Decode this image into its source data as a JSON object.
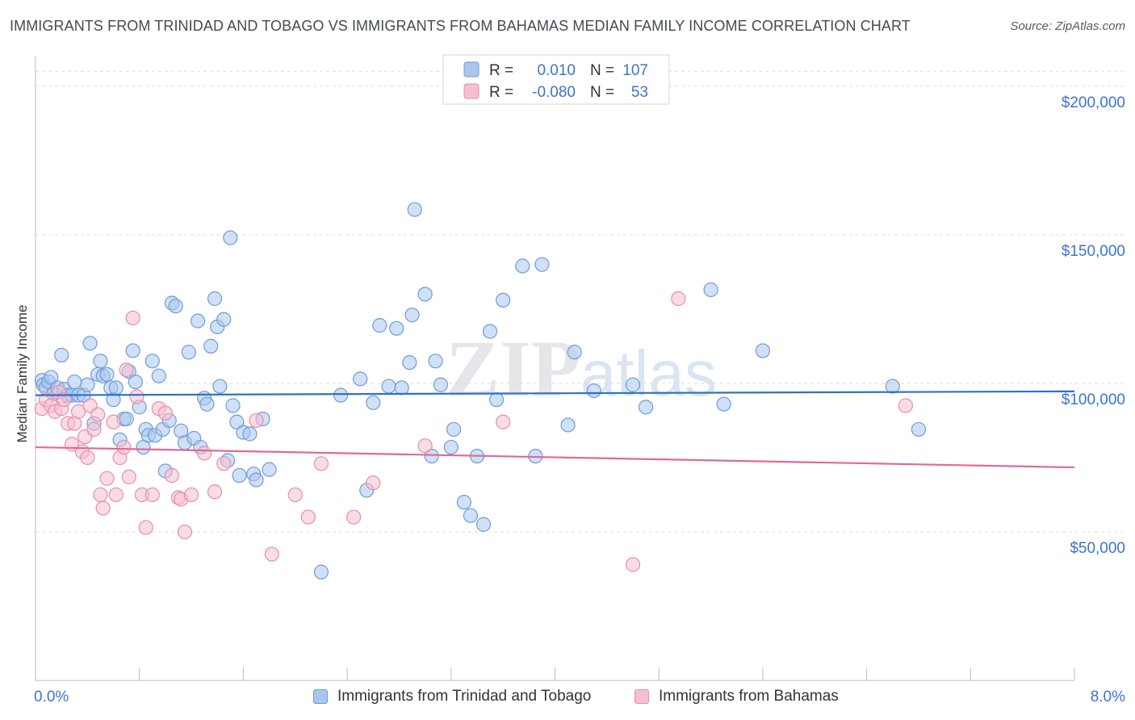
{
  "header": {
    "title": "IMMIGRANTS FROM TRINIDAD AND TOBAGO VS IMMIGRANTS FROM BAHAMAS MEDIAN FAMILY INCOME CORRELATION CHART",
    "source": "Source: ZipAtlas.com"
  },
  "watermark": "ZIPatlas",
  "colors": {
    "blue_fill": "#a9c6ee",
    "blue_stroke": "#6f9bd9",
    "blue_line": "#2f6fcb",
    "pink_fill": "#f6bfd0",
    "pink_stroke": "#e88dab",
    "pink_line": "#e0689a",
    "tick_label": "#3b74d1",
    "grid": "#dddddd"
  },
  "chart_data": {
    "type": "scatter",
    "title": "IMMIGRANTS FROM TRINIDAD AND TOBAGO VS IMMIGRANTS FROM BAHAMAS MEDIAN FAMILY INCOME CORRELATION CHART",
    "xlabel": "",
    "ylabel": "Median Family Income",
    "xlim": [
      0,
      8
    ],
    "ylim": [
      0,
      210000
    ],
    "x_tick_labels": [
      "0.0%",
      "8.0%"
    ],
    "y_ticks": [
      50000,
      100000,
      150000,
      200000
    ],
    "y_tick_labels": [
      "$50,000",
      "$100,000",
      "$150,000",
      "$200,000"
    ],
    "grid": "horizontal dashed",
    "legend_top": [
      {
        "r_label": "R =",
        "r_value": "0.010",
        "n_label": "N =",
        "n_value": "107"
      },
      {
        "r_label": "R =",
        "r_value": "-0.080",
        "n_label": "N =",
        "n_value": "53"
      }
    ],
    "series": [
      {
        "name": "Immigrants from Trinidad and Tobago",
        "trend": {
          "x": [
            0,
            8
          ],
          "y": [
            96000,
            97300
          ]
        },
        "points": [
          [
            0.05,
            101000
          ],
          [
            0.06,
            99500
          ],
          [
            0.08,
            98500
          ],
          [
            0.1,
            100500
          ],
          [
            0.12,
            102000
          ],
          [
            0.14,
            96500
          ],
          [
            0.17,
            98500
          ],
          [
            0.2,
            109500
          ],
          [
            0.22,
            98000
          ],
          [
            0.25,
            96000
          ],
          [
            0.28,
            96000
          ],
          [
            0.3,
            100500
          ],
          [
            0.33,
            96000
          ],
          [
            0.37,
            96000
          ],
          [
            0.4,
            99500
          ],
          [
            0.42,
            113500
          ],
          [
            0.45,
            86500
          ],
          [
            0.48,
            103000
          ],
          [
            0.5,
            107500
          ],
          [
            0.52,
            102500
          ],
          [
            0.55,
            103000
          ],
          [
            0.58,
            98500
          ],
          [
            0.6,
            94500
          ],
          [
            0.62,
            98500
          ],
          [
            0.65,
            81000
          ],
          [
            0.68,
            88000
          ],
          [
            0.7,
            88000
          ],
          [
            0.72,
            104000
          ],
          [
            0.75,
            111000
          ],
          [
            0.77,
            100500
          ],
          [
            0.8,
            92000
          ],
          [
            0.83,
            78500
          ],
          [
            0.85,
            84500
          ],
          [
            0.87,
            82500
          ],
          [
            0.9,
            107500
          ],
          [
            0.92,
            82500
          ],
          [
            0.95,
            102500
          ],
          [
            0.98,
            84500
          ],
          [
            1.0,
            70500
          ],
          [
            1.03,
            87500
          ],
          [
            1.05,
            127000
          ],
          [
            1.08,
            126000
          ],
          [
            1.12,
            84000
          ],
          [
            1.15,
            80000
          ],
          [
            1.18,
            110500
          ],
          [
            1.22,
            81500
          ],
          [
            1.25,
            121000
          ],
          [
            1.27,
            78500
          ],
          [
            1.3,
            95000
          ],
          [
            1.32,
            93000
          ],
          [
            1.35,
            112500
          ],
          [
            1.38,
            128500
          ],
          [
            1.4,
            119000
          ],
          [
            1.42,
            99000
          ],
          [
            1.45,
            121500
          ],
          [
            1.48,
            74000
          ],
          [
            1.5,
            149000
          ],
          [
            1.52,
            92500
          ],
          [
            1.55,
            87000
          ],
          [
            1.57,
            69000
          ],
          [
            1.6,
            83500
          ],
          [
            1.65,
            83000
          ],
          [
            1.68,
            69500
          ],
          [
            1.7,
            67500
          ],
          [
            1.75,
            88000
          ],
          [
            1.8,
            71000
          ],
          [
            2.2,
            36500
          ],
          [
            2.35,
            96000
          ],
          [
            2.5,
            101500
          ],
          [
            2.55,
            64000
          ],
          [
            2.6,
            93500
          ],
          [
            2.65,
            119500
          ],
          [
            2.72,
            99000
          ],
          [
            2.78,
            118500
          ],
          [
            2.82,
            98500
          ],
          [
            2.88,
            107000
          ],
          [
            2.9,
            123000
          ],
          [
            2.92,
            158500
          ],
          [
            3.0,
            130000
          ],
          [
            3.05,
            75500
          ],
          [
            3.08,
            107500
          ],
          [
            3.12,
            99500
          ],
          [
            3.2,
            78500
          ],
          [
            3.22,
            84500
          ],
          [
            3.3,
            60000
          ],
          [
            3.35,
            55500
          ],
          [
            3.4,
            75500
          ],
          [
            3.45,
            52500
          ],
          [
            3.5,
            117500
          ],
          [
            3.55,
            94500
          ],
          [
            3.6,
            128000
          ],
          [
            3.75,
            139500
          ],
          [
            3.85,
            75500
          ],
          [
            3.9,
            140000
          ],
          [
            4.1,
            86000
          ],
          [
            4.15,
            110500
          ],
          [
            4.3,
            97500
          ],
          [
            4.6,
            99500
          ],
          [
            4.7,
            92000
          ],
          [
            5.2,
            131500
          ],
          [
            5.3,
            93000
          ],
          [
            5.6,
            111000
          ],
          [
            6.6,
            99000
          ],
          [
            6.8,
            84500
          ]
        ]
      },
      {
        "name": "Immigrants from Bahamas",
        "trend": {
          "x": [
            0,
            8
          ],
          "y": [
            78500,
            71700
          ]
        },
        "points": [
          [
            0.05,
            91500
          ],
          [
            0.08,
            94500
          ],
          [
            0.12,
            92500
          ],
          [
            0.15,
            90500
          ],
          [
            0.18,
            97000
          ],
          [
            0.2,
            91500
          ],
          [
            0.22,
            94500
          ],
          [
            0.25,
            86500
          ],
          [
            0.28,
            79500
          ],
          [
            0.3,
            86500
          ],
          [
            0.33,
            90500
          ],
          [
            0.36,
            77000
          ],
          [
            0.38,
            82000
          ],
          [
            0.4,
            75000
          ],
          [
            0.42,
            92500
          ],
          [
            0.45,
            84500
          ],
          [
            0.48,
            89500
          ],
          [
            0.5,
            62500
          ],
          [
            0.52,
            58000
          ],
          [
            0.55,
            68000
          ],
          [
            0.6,
            87000
          ],
          [
            0.62,
            62500
          ],
          [
            0.65,
            75000
          ],
          [
            0.68,
            78500
          ],
          [
            0.7,
            104500
          ],
          [
            0.72,
            68500
          ],
          [
            0.75,
            122000
          ],
          [
            0.78,
            95500
          ],
          [
            0.82,
            62500
          ],
          [
            0.85,
            51500
          ],
          [
            0.9,
            62500
          ],
          [
            0.95,
            91500
          ],
          [
            1.0,
            90000
          ],
          [
            1.05,
            69000
          ],
          [
            1.1,
            61500
          ],
          [
            1.12,
            61000
          ],
          [
            1.15,
            50000
          ],
          [
            1.2,
            62500
          ],
          [
            1.3,
            76500
          ],
          [
            1.38,
            63500
          ],
          [
            1.45,
            73000
          ],
          [
            1.7,
            87500
          ],
          [
            1.82,
            42500
          ],
          [
            2.0,
            62500
          ],
          [
            2.1,
            55000
          ],
          [
            2.2,
            73000
          ],
          [
            2.45,
            55000
          ],
          [
            2.6,
            66500
          ],
          [
            3.0,
            79000
          ],
          [
            3.6,
            87000
          ],
          [
            4.6,
            39000
          ],
          [
            4.95,
            128500
          ],
          [
            6.7,
            92500
          ]
        ]
      }
    ]
  }
}
